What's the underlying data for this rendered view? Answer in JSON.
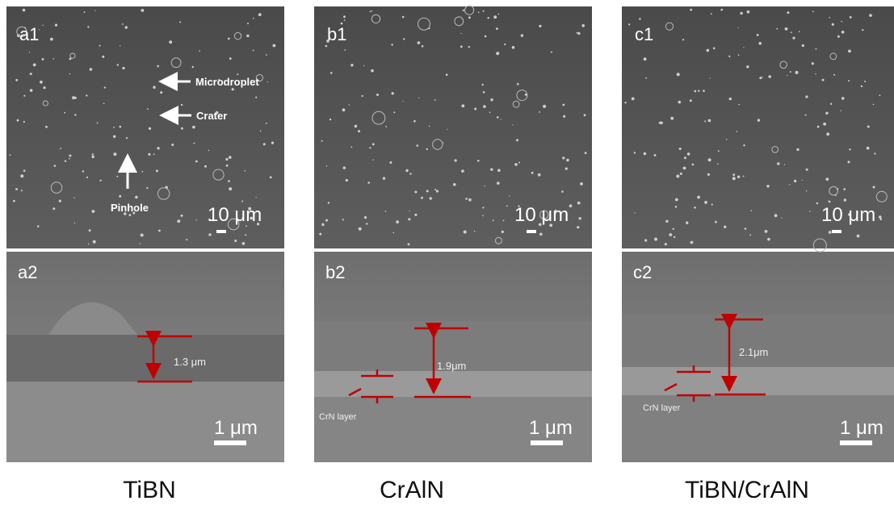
{
  "panels": [
    {
      "label": "a1",
      "scale_bar": "10 μm",
      "annotations": [
        "Microdroplet",
        "Crater",
        "Pinhole"
      ]
    },
    {
      "label": "b1",
      "scale_bar": "10 μm"
    },
    {
      "label": "c1",
      "scale_bar": "10 μm"
    },
    {
      "label": "a2",
      "scale_bar": "1 μm",
      "thickness": "1.3 μm"
    },
    {
      "label": "b2",
      "scale_bar": "1 μm",
      "thickness": "1.9μm",
      "layer_label": "CrN layer"
    },
    {
      "label": "c2",
      "scale_bar": "1 μm",
      "thickness": "2.1μm",
      "layer_label": "CrN layer"
    }
  ],
  "captions": [
    "TiBN",
    "CrAlN",
    "TiBN/CrAlN"
  ]
}
